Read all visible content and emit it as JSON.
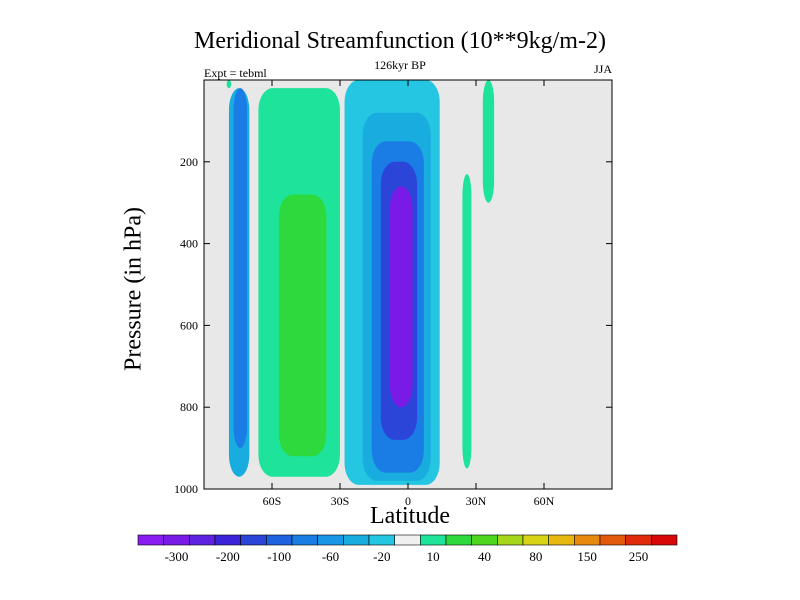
{
  "chart_data": {
    "type": "contour",
    "title": "Meridional Streamfunction (10**9kg/m-2)",
    "left_label": "Expt = tebml",
    "center_label": "126kyr BP",
    "right_label": "JJA",
    "xlabel": "Latitude",
    "ylabel": "Pressure (in hPa)",
    "x_range": [
      -90,
      90
    ],
    "y_range": [
      0,
      1000
    ],
    "x_ticks": [
      {
        "value": -60,
        "label": "60S"
      },
      {
        "value": -30,
        "label": "30S"
      },
      {
        "value": 0,
        "label": "0"
      },
      {
        "value": 30,
        "label": "30N"
      },
      {
        "value": 60,
        "label": "60N"
      }
    ],
    "y_ticks": [
      {
        "value": 200,
        "label": "200"
      },
      {
        "value": 400,
        "label": "400"
      },
      {
        "value": 600,
        "label": "600"
      },
      {
        "value": 800,
        "label": "800"
      },
      {
        "value": 1000,
        "label": "1000"
      }
    ],
    "background_color": "#e8e8e8",
    "colorbar": {
      "labels": [
        {
          "index": 1,
          "text": "-300"
        },
        {
          "index": 3,
          "text": "-200"
        },
        {
          "index": 5,
          "text": "-100"
        },
        {
          "index": 7,
          "text": "-60"
        },
        {
          "index": 9,
          "text": "-20"
        },
        {
          "index": 11,
          "text": "10"
        },
        {
          "index": 13,
          "text": "40"
        },
        {
          "index": 15,
          "text": "80"
        },
        {
          "index": 17,
          "text": "150"
        },
        {
          "index": 19,
          "text": "250"
        }
      ],
      "colors": [
        "#8a1ef2",
        "#7a1ae6",
        "#5f22e0",
        "#3c22d8",
        "#2a45d8",
        "#1f62e0",
        "#1a7de6",
        "#1a96e6",
        "#19acde",
        "#24c6e2",
        "#f0f0f0",
        "#1de49a",
        "#2ed93e",
        "#4ed61e",
        "#a6d618",
        "#d6d414",
        "#e8b810",
        "#e88a0e",
        "#e45a0c",
        "#e02a0a",
        "#d80808"
      ]
    },
    "regions": [
      {
        "name": "pos-low-lat-band-1",
        "lat": [
          -80,
          -78
        ],
        "p": [
          0,
          20
        ],
        "category": "10 to 20"
      },
      {
        "name": "neg-sh-polar-cell",
        "lat": [
          -79,
          -70
        ],
        "p": [
          20,
          970
        ],
        "category": "-60 to -20"
      },
      {
        "name": "neg-sh-polar-core",
        "lat": [
          -77,
          -71
        ],
        "p": [
          20,
          900
        ],
        "category": "-100 to -60"
      },
      {
        "name": "pos-sh-ferrel-outer",
        "lat": [
          -66,
          -30
        ],
        "p": [
          20,
          970
        ],
        "category": "10 to 40"
      },
      {
        "name": "pos-sh-ferrel-core",
        "lat": [
          -57,
          -36
        ],
        "p": [
          280,
          920
        ],
        "category": "40 to 80"
      },
      {
        "name": "neg-hadley-outer",
        "lat": [
          -28,
          14
        ],
        "p": [
          0,
          990
        ],
        "category": "-20 to -10"
      },
      {
        "name": "neg-hadley-mid",
        "lat": [
          -20,
          10
        ],
        "p": [
          80,
          980
        ],
        "category": "-60 to -20"
      },
      {
        "name": "neg-hadley-inner",
        "lat": [
          -16,
          7
        ],
        "p": [
          150,
          960
        ],
        "category": "-100 to -60"
      },
      {
        "name": "neg-hadley-core",
        "lat": [
          -12,
          4
        ],
        "p": [
          200,
          880
        ],
        "category": "-200 to -100"
      },
      {
        "name": "neg-hadley-max",
        "lat": [
          -8,
          2
        ],
        "p": [
          260,
          800
        ],
        "category": "-300 to -200"
      },
      {
        "name": "pos-nh-tropics",
        "lat": [
          24,
          28
        ],
        "p": [
          230,
          950
        ],
        "category": "10 to 40"
      },
      {
        "name": "pos-nh-strip",
        "lat": [
          33,
          38
        ],
        "p": [
          0,
          300
        ],
        "category": "10 to 40"
      }
    ]
  }
}
